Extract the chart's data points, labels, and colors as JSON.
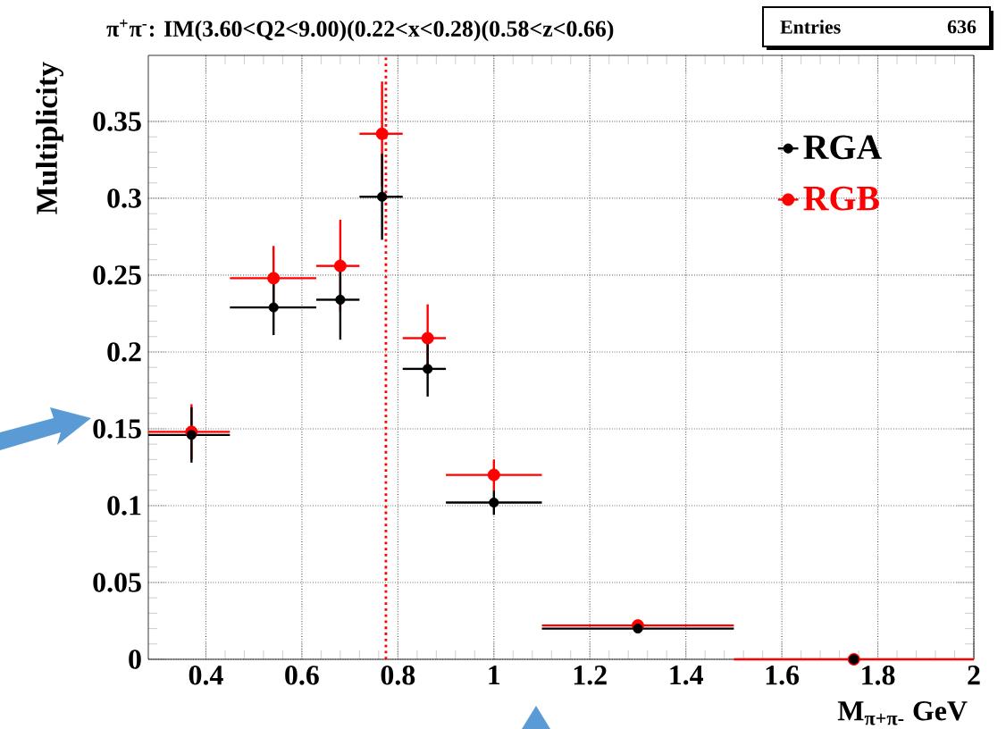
{
  "chart_data": {
    "type": "scatter",
    "title": "π$^{+}$π$^{-}$: IM(3.60<Q2<9.00)(0.22<x<0.28)(0.58<z<0.66)",
    "xlabel": "M$_{π+π-}$ GeV",
    "ylabel": "Multiplicity",
    "annotations": [
      "Entries",
      "636"
    ],
    "series": [
      {
        "name": "RGA",
        "color": "#000000",
        "x": [
          0.37,
          0.541,
          0.68,
          0.767,
          0.862,
          1.0,
          1.3,
          1.75
        ],
        "values": [
          0.146,
          0.229,
          0.234,
          0.301,
          0.189,
          0.102,
          0.02,
          0.0
        ],
        "errors": [
          0.018,
          0.018,
          0.026,
          0.028,
          0.018,
          0.008,
          null,
          null
        ],
        "xerrors": [
          [
            0.28,
            0.45
          ],
          [
            0.45,
            0.63
          ],
          [
            0.63,
            0.72
          ],
          [
            0.72,
            0.81
          ],
          [
            0.81,
            0.9
          ],
          [
            0.9,
            1.1
          ],
          [
            1.1,
            1.5
          ],
          null
        ]
      },
      {
        "name": "RGB",
        "color": "#ff0000",
        "x": [
          0.37,
          0.541,
          0.68,
          0.767,
          0.862,
          1.0,
          1.3,
          1.75
        ],
        "values": [
          0.148,
          0.248,
          0.256,
          0.342,
          0.209,
          0.12,
          0.022,
          0.0
        ],
        "errors": [
          0.018,
          0.021,
          0.03,
          0.034,
          0.022,
          0.01,
          null,
          null
        ],
        "xerrors": [
          [
            0.28,
            0.45
          ],
          [
            0.45,
            0.63
          ],
          [
            0.63,
            0.72
          ],
          [
            0.72,
            0.81
          ],
          [
            0.81,
            0.9
          ],
          [
            0.9,
            1.1
          ],
          [
            1.1,
            1.5
          ],
          [
            1.5,
            2.0
          ]
        ]
      }
    ],
    "xlim": [
      0.28,
      2.0
    ],
    "ylim": [
      0,
      0.393
    ],
    "xticks": [
      0.4,
      0.6,
      0.8,
      1,
      1.2,
      1.4,
      1.6,
      1.8,
      2
    ],
    "yticks": [
      0,
      0.05,
      0.1,
      0.15,
      0.2,
      0.25,
      0.3,
      0.35
    ],
    "ref_lines": [
      {
        "axis": "x",
        "value": 0.775,
        "color": "#ff0000",
        "line_style": "dotted"
      }
    ],
    "grid": true,
    "legend": "top right",
    "marker": "circle"
  }
}
